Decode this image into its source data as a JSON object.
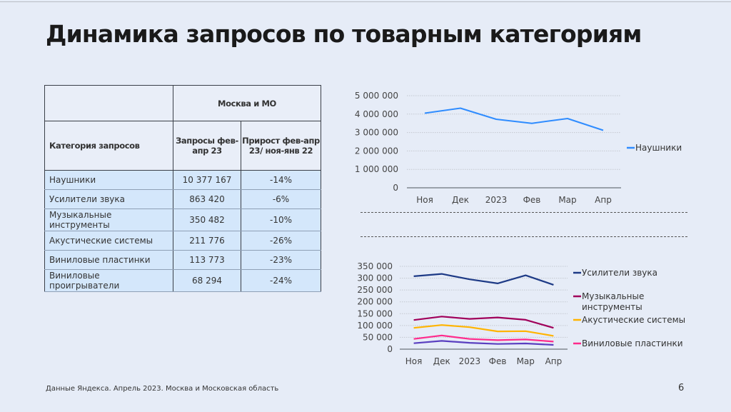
{
  "title": "Динамика запросов по товарным категориям",
  "table": {
    "region_header": "Москва и МО",
    "col_category": "Категория запросов",
    "col_requests": "Запросы фев-апр 23",
    "col_growth": "Прирост фев-апр 23/ ноя-янв 22",
    "rows": [
      {
        "category": "Наушники",
        "requests": "10 377 167",
        "growth": "-14%"
      },
      {
        "category": "Усилители звука",
        "requests": "863 420",
        "growth": "-6%"
      },
      {
        "category": "Музыкальные инструменты",
        "requests": "350 482",
        "growth": "-10%"
      },
      {
        "category": "Акустические системы",
        "requests": "211 776",
        "growth": "-26%"
      },
      {
        "category": "Виниловые пластинки",
        "requests": "113 773",
        "growth": "-23%"
      },
      {
        "category": "Виниловые проигрыватели",
        "requests": "68 294",
        "growth": "-24%"
      }
    ]
  },
  "chart_data": [
    {
      "type": "line",
      "categories": [
        "Ноя",
        "Дек",
        "2023",
        "Фев",
        "Мар",
        "Апр"
      ],
      "ylim": [
        0,
        5000000
      ],
      "yticks": [
        0,
        1000000,
        2000000,
        3000000,
        4000000,
        5000000
      ],
      "ytick_labels": [
        "0",
        "1 000 000",
        "2 000 000",
        "3 000 000",
        "4 000 000",
        "5 000 000"
      ],
      "grid": true,
      "legend": "right",
      "series": [
        {
          "name": "Наушники",
          "color": "#2f8cff",
          "values": [
            4050000,
            4320000,
            3720000,
            3500000,
            3760000,
            3120000
          ],
          "in_legend": true
        }
      ]
    },
    {
      "type": "line",
      "categories": [
        "Ноя",
        "Дек",
        "2023",
        "Фев",
        "Мар",
        "Апр"
      ],
      "ylim": [
        0,
        350000
      ],
      "yticks": [
        0,
        50000,
        100000,
        150000,
        200000,
        250000,
        300000,
        350000
      ],
      "ytick_labels": [
        "0",
        "50 000",
        "100 000",
        "150 000",
        "200 000",
        "250 000",
        "300 000",
        "350 000"
      ],
      "grid": true,
      "legend": "right",
      "series": [
        {
          "name": "Усилители звука",
          "color": "#1d3a86",
          "values": [
            308000,
            318000,
            295000,
            278000,
            312000,
            272000
          ],
          "in_legend": true
        },
        {
          "name": "Музыкальные инструменты",
          "color": "#a0005a",
          "values": [
            123000,
            138000,
            128000,
            134000,
            124000,
            90000
          ],
          "in_legend": true
        },
        {
          "name": "Акустические системы",
          "color": "#ffb400",
          "values": [
            90000,
            102000,
            93000,
            75000,
            76000,
            56000
          ],
          "in_legend": true
        },
        {
          "name": "Виниловые пластинки",
          "color": "#ff2a8c",
          "values": [
            43000,
            58000,
            43000,
            38000,
            41000,
            32000
          ],
          "in_legend": true
        },
        {
          "name": "Виниловые проигрыватели",
          "color": "#5a3fc0",
          "values": [
            25000,
            35000,
            27000,
            22000,
            24000,
            18000
          ],
          "in_legend": false
        }
      ]
    }
  ],
  "footer": "Данные Яндекса. Апрель 2023. Москва и Московская область",
  "page_number": "6"
}
